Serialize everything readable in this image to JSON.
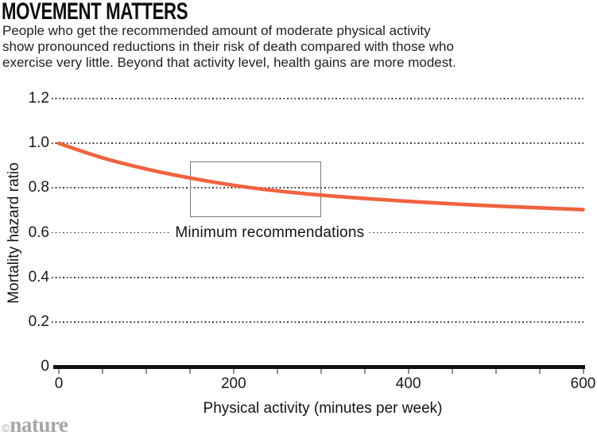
{
  "header": {
    "title": "MOVEMENT MATTERS",
    "subtitle_lines": [
      "People who get the recommended amount of moderate physical activity",
      "show pronounced reductions in their risk of death compared with those who",
      "exercise very little. Beyond that activity level, health gains are more modest."
    ]
  },
  "chart_data": {
    "type": "line",
    "title": "MOVEMENT MATTERS",
    "xlabel": "Physical activity (minutes per week)",
    "ylabel": "Mortality hazard ratio",
    "xlim": [
      0,
      600
    ],
    "ylim": [
      0,
      1.2
    ],
    "grid": "horizontal-dotted",
    "legend": "none",
    "x_ticks_labeled": [
      {
        "value": 0,
        "label": "0"
      },
      {
        "value": 200,
        "label": "200"
      },
      {
        "value": 400,
        "label": "400"
      },
      {
        "value": 600,
        "label": "600"
      }
    ],
    "x_minor_tick_step": 50,
    "y_ticks": [
      {
        "value": 1.2,
        "label": "1.2"
      },
      {
        "value": 1.0,
        "label": "1.0"
      },
      {
        "value": 0.8,
        "label": "0.8"
      },
      {
        "value": 0.6,
        "label": "0.6"
      },
      {
        "value": 0.4,
        "label": "0.4"
      },
      {
        "value": 0.2,
        "label": "0.2"
      },
      {
        "value": 0,
        "label": "0"
      }
    ],
    "x": [
      0,
      50,
      100,
      150,
      200,
      250,
      300,
      350,
      400,
      450,
      500,
      550,
      600
    ],
    "series": [
      {
        "name": "Mortality hazard ratio",
        "color": "#F0633E",
        "values": [
          1.0,
          0.935,
          0.885,
          0.845,
          0.812,
          0.787,
          0.768,
          0.753,
          0.74,
          0.729,
          0.719,
          0.711,
          0.703
        ]
      }
    ],
    "annotation_box": {
      "label": "Minimum recommendations",
      "x0": 150,
      "x1": 300,
      "y0": 0.67,
      "y1": 0.92
    }
  },
  "colors": {
    "curve": "#F0633E",
    "grid_dot": "#3c3c3c",
    "axis": "#121212",
    "tick_mark": "#8f8f8f",
    "box_border": "#77787b",
    "text": "#1a1a1a",
    "credit": "#a6a6a6"
  },
  "footer": {
    "copyright": "©",
    "brand": "nature"
  }
}
